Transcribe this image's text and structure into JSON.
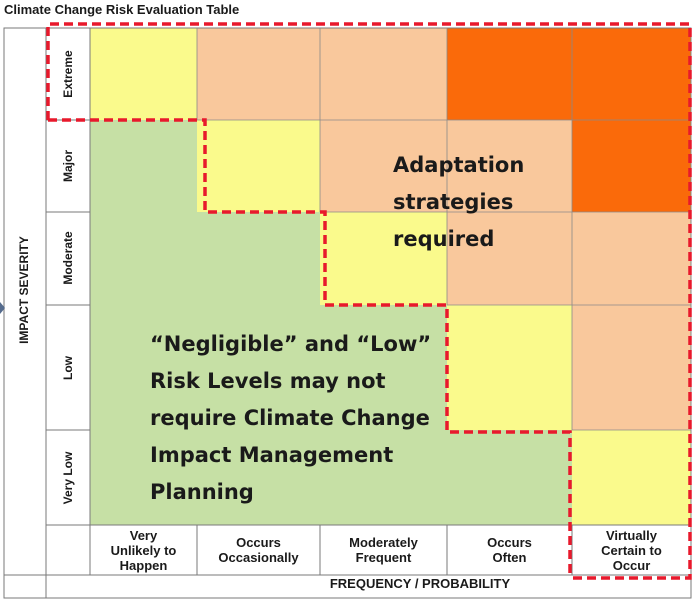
{
  "title": "Climate Change Risk Evaluation Table",
  "y_axis_label": "IMPACT SEVERITY",
  "x_axis_label": "FREQUENCY / PROBABILITY",
  "rows": [
    "Extreme",
    "Major",
    "Moderate",
    "Low",
    "Very Low"
  ],
  "columns": [
    [
      "Very",
      "Unlikely to",
      "Happen"
    ],
    [
      "Occurs",
      "Occasionally"
    ],
    [
      "Moderately",
      "Frequent"
    ],
    [
      "Occurs",
      "Often"
    ],
    [
      "Virtually",
      "Certain to",
      "Occur"
    ]
  ],
  "notes": {
    "adaptation": [
      "Adaptation",
      "strategies",
      "required"
    ],
    "low_risk": [
      "“Negligible” and “Low”",
      "Risk Levels may not",
      "require Climate Change",
      "Impact Management",
      "Planning"
    ]
  },
  "colors": {
    "green": "#c6e0a5",
    "yellow": "#fafa8c",
    "peach": "#f9c89c",
    "orange": "#fa6a0a",
    "dashed_outline": "#e8192c",
    "grid": "#7a7a7a"
  }
}
